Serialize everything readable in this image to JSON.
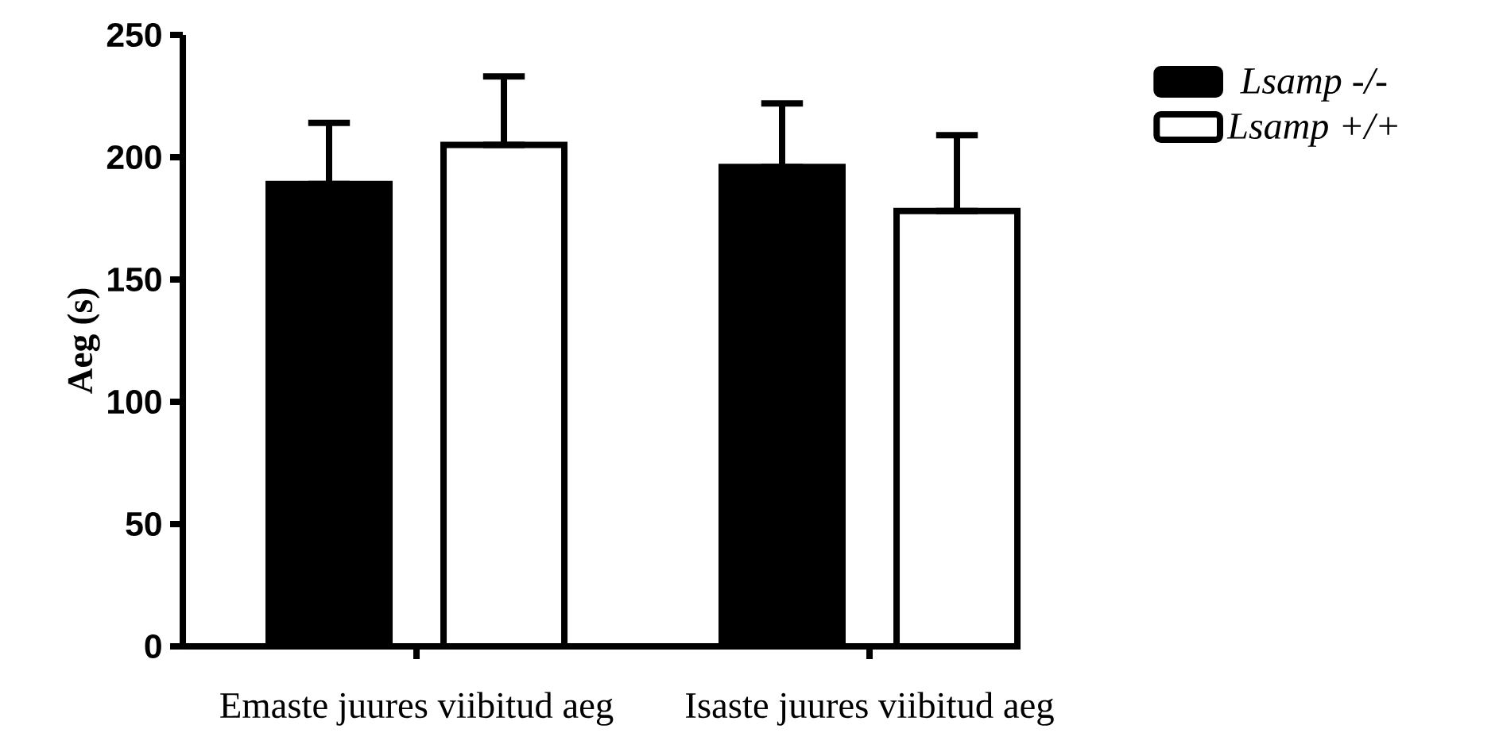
{
  "chart_data": {
    "type": "bar",
    "ylabel": "Aeg (s)",
    "categories": [
      "Emaste juures viibitud aeg",
      "Isaste juures viibitud aeg"
    ],
    "series": [
      {
        "name": "Lsamp -/-",
        "color": "#000000",
        "values": [
          189,
          196
        ],
        "errors": [
          [
            189,
            214
          ],
          [
            196,
            222
          ]
        ]
      },
      {
        "name": "Lsamp +/+",
        "color": "#ffffff",
        "values": [
          205,
          178
        ],
        "errors": [
          [
            205,
            233
          ],
          [
            178,
            209
          ]
        ]
      }
    ],
    "ylim": [
      0,
      250
    ],
    "yticks": [
      0,
      50,
      100,
      150,
      200,
      250
    ],
    "grid": false,
    "legend": "top right"
  }
}
